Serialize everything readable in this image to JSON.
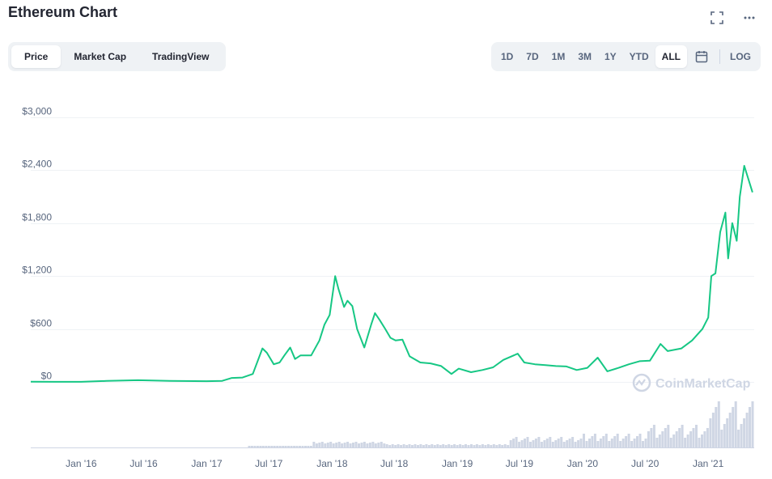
{
  "header": {
    "title": "Ethereum Chart"
  },
  "tabs": [
    {
      "label": "Price",
      "active": true
    },
    {
      "label": "Market Cap",
      "active": false
    },
    {
      "label": "TradingView",
      "active": false
    }
  ],
  "ranges": [
    {
      "label": "1D",
      "active": false
    },
    {
      "label": "7D",
      "active": false
    },
    {
      "label": "1M",
      "active": false
    },
    {
      "label": "3M",
      "active": false
    },
    {
      "label": "1Y",
      "active": false
    },
    {
      "label": "YTD",
      "active": false
    },
    {
      "label": "ALL",
      "active": true
    }
  ],
  "log_label": "LOG",
  "watermark": "CoinMarketCap",
  "colors": {
    "line": "#16c784",
    "volume": "#cfd6e4",
    "grid": "#eff2f5",
    "axis_text": "#58667e"
  },
  "chart_data": {
    "type": "line",
    "ylabel": "",
    "xlabel": "",
    "y_ticks": [
      "$0",
      "$600",
      "$1,200",
      "$1,800",
      "$2,400",
      "$3,000"
    ],
    "y_tick_values": [
      0,
      600,
      1200,
      1800,
      2400,
      3000
    ],
    "ylim": [
      0,
      3000
    ],
    "x_ticks": [
      "Jan '16",
      "Jul '16",
      "Jan '17",
      "Jul '17",
      "Jan '18",
      "Jul '18",
      "Jan '19",
      "Jul '19",
      "Jan '20",
      "Jul '20",
      "Jan '21"
    ],
    "x_tick_dates": [
      "2016-01-01",
      "2016-07-01",
      "2017-01-01",
      "2017-07-01",
      "2018-01-01",
      "2018-07-01",
      "2019-01-01",
      "2019-07-01",
      "2020-01-01",
      "2020-07-01",
      "2021-01-01"
    ],
    "xlim": [
      "2015-08-07",
      "2021-05-15"
    ],
    "grid": true,
    "series": [
      {
        "values": [
          [
            "2015-08-07",
            3
          ],
          [
            "2015-10-15",
            1
          ],
          [
            "2016-01-01",
            1
          ],
          [
            "2016-03-15",
            11
          ],
          [
            "2016-06-15",
            19
          ],
          [
            "2016-09-15",
            12
          ],
          [
            "2017-01-01",
            8
          ],
          [
            "2017-02-15",
            12
          ],
          [
            "2017-03-15",
            45
          ],
          [
            "2017-04-15",
            50
          ],
          [
            "2017-05-15",
            90
          ],
          [
            "2017-06-12",
            380
          ],
          [
            "2017-06-25",
            330
          ],
          [
            "2017-07-15",
            200
          ],
          [
            "2017-08-01",
            220
          ],
          [
            "2017-08-15",
            300
          ],
          [
            "2017-09-01",
            390
          ],
          [
            "2017-09-15",
            260
          ],
          [
            "2017-10-01",
            300
          ],
          [
            "2017-11-01",
            300
          ],
          [
            "2017-11-25",
            470
          ],
          [
            "2017-12-10",
            650
          ],
          [
            "2017-12-25",
            760
          ],
          [
            "2018-01-10",
            1200
          ],
          [
            "2018-01-20",
            1050
          ],
          [
            "2018-02-05",
            850
          ],
          [
            "2018-02-15",
            920
          ],
          [
            "2018-03-01",
            860
          ],
          [
            "2018-03-15",
            600
          ],
          [
            "2018-04-05",
            390
          ],
          [
            "2018-04-25",
            650
          ],
          [
            "2018-05-06",
            780
          ],
          [
            "2018-05-20",
            700
          ],
          [
            "2018-06-05",
            600
          ],
          [
            "2018-06-20",
            500
          ],
          [
            "2018-07-05",
            470
          ],
          [
            "2018-07-25",
            480
          ],
          [
            "2018-08-15",
            290
          ],
          [
            "2018-09-15",
            220
          ],
          [
            "2018-10-15",
            210
          ],
          [
            "2018-11-15",
            180
          ],
          [
            "2018-12-15",
            90
          ],
          [
            "2019-01-05",
            150
          ],
          [
            "2019-02-10",
            110
          ],
          [
            "2019-03-15",
            135
          ],
          [
            "2019-04-15",
            165
          ],
          [
            "2019-05-15",
            250
          ],
          [
            "2019-06-26",
            320
          ],
          [
            "2019-07-15",
            220
          ],
          [
            "2019-08-15",
            200
          ],
          [
            "2019-09-15",
            190
          ],
          [
            "2019-10-15",
            180
          ],
          [
            "2019-11-15",
            175
          ],
          [
            "2019-12-15",
            135
          ],
          [
            "2020-01-15",
            160
          ],
          [
            "2020-02-14",
            275
          ],
          [
            "2020-03-13",
            120
          ],
          [
            "2020-04-15",
            160
          ],
          [
            "2020-05-15",
            200
          ],
          [
            "2020-06-15",
            235
          ],
          [
            "2020-07-15",
            240
          ],
          [
            "2020-08-15",
            430
          ],
          [
            "2020-09-05",
            350
          ],
          [
            "2020-10-15",
            380
          ],
          [
            "2020-11-15",
            470
          ],
          [
            "2020-12-15",
            600
          ],
          [
            "2021-01-01",
            730
          ],
          [
            "2021-01-10",
            1200
          ],
          [
            "2021-01-22",
            1230
          ],
          [
            "2021-02-05",
            1700
          ],
          [
            "2021-02-20",
            1920
          ],
          [
            "2021-02-28",
            1400
          ],
          [
            "2021-03-12",
            1800
          ],
          [
            "2021-03-25",
            1600
          ],
          [
            "2021-04-03",
            2100
          ],
          [
            "2021-04-16",
            2450
          ],
          [
            "2021-05-10",
            2150
          ]
        ]
      }
    ]
  }
}
